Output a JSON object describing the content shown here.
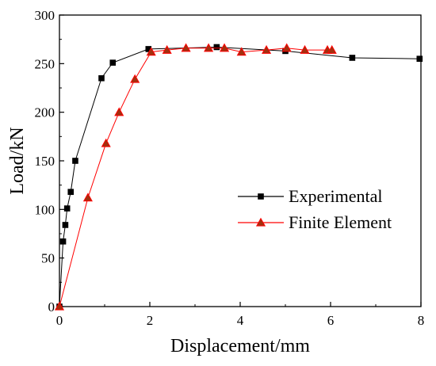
{
  "chart_data": {
    "type": "line",
    "xlabel": "Displacement/mm",
    "ylabel": "Load/kN",
    "xlim": [
      0,
      8
    ],
    "ylim": [
      0,
      300
    ],
    "xticks": [
      "0",
      "2",
      "4",
      "6",
      "8"
    ],
    "yticks": [
      "0",
      "50",
      "100",
      "150",
      "200",
      "250",
      "300"
    ],
    "grid": false,
    "legend_position": "right",
    "series": [
      {
        "name": "Experimental",
        "color": "#000000",
        "marker": "square",
        "x": [
          0,
          0.08,
          0.13,
          0.17,
          0.25,
          0.35,
          0.93,
          1.18,
          1.97,
          3.48,
          5.0,
          6.48,
          7.97
        ],
        "y": [
          0,
          67,
          84,
          101,
          118,
          150,
          235,
          251,
          265,
          267,
          263,
          256,
          255
        ]
      },
      {
        "name": "Finite Element",
        "color": "#ff0000",
        "marker": "triangle",
        "x": [
          0,
          0.63,
          1.03,
          1.32,
          1.67,
          2.03,
          2.38,
          2.8,
          3.3,
          3.65,
          4.03,
          4.58,
          5.03,
          5.43,
          5.93,
          6.03
        ],
        "y": [
          0,
          112,
          168,
          200,
          234,
          262,
          264,
          266,
          266,
          266,
          262,
          264,
          266,
          264,
          264,
          264
        ]
      }
    ]
  }
}
